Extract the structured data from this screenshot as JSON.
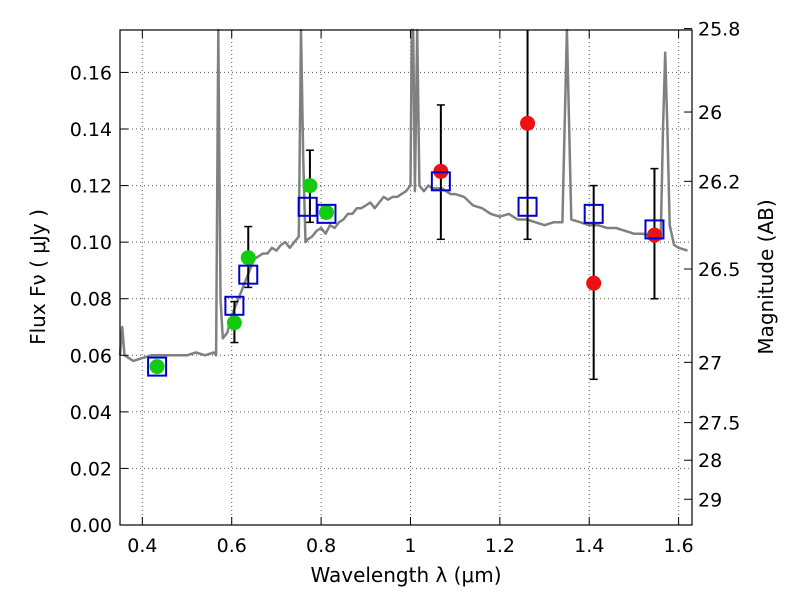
{
  "chart_data": {
    "type": "scatter",
    "xlabel": "Wavelength  λ (μm)",
    "ylabel": "Flux  Fν  ( μJy )",
    "ylabel_right": "Magnitude (AB)",
    "xlim": [
      0.35,
      1.63
    ],
    "ylim": [
      0.0,
      0.175
    ],
    "grid": true,
    "x_ticks": [
      0.4,
      0.6,
      0.8,
      1.0,
      1.2,
      1.4,
      1.6
    ],
    "x_tick_labels": [
      "0.4",
      "0.6",
      "0.8",
      "1",
      "1.2",
      "1.4",
      "1.6"
    ],
    "y_ticks": [
      0.0,
      0.02,
      0.04,
      0.06,
      0.08,
      0.1,
      0.12,
      0.14,
      0.16
    ],
    "y_tick_labels": [
      "0.00",
      "0.02",
      "0.04",
      "0.06",
      "0.08",
      "0.10",
      "0.12",
      "0.14",
      "0.16"
    ],
    "right_ticks": [
      {
        "label": "25.8",
        "flux": 0.1755
      },
      {
        "label": "26",
        "flux": 0.146
      },
      {
        "label": "26.2",
        "flux": 0.1215
      },
      {
        "label": "26.5",
        "flux": 0.0905
      },
      {
        "label": "27",
        "flux": 0.0575
      },
      {
        "label": "27.5",
        "flux": 0.0362
      },
      {
        "label": "28",
        "flux": 0.0229
      },
      {
        "label": "29",
        "flux": 0.0091
      }
    ],
    "colors": {
      "spectrum": "#808080",
      "model_box": "#0000cc",
      "green_points": "#11cc11",
      "red_points": "#ee1111",
      "errorbar": "#000000",
      "grid": "#555555"
    },
    "series": [
      {
        "marker": "line",
        "x": [
          0.35,
          0.355,
          0.36,
          0.37,
          0.38,
          0.4,
          0.42,
          0.44,
          0.46,
          0.48,
          0.5,
          0.52,
          0.54,
          0.56,
          0.565,
          0.57,
          0.575,
          0.58,
          0.59,
          0.6,
          0.61,
          0.62,
          0.63,
          0.64,
          0.65,
          0.66,
          0.67,
          0.68,
          0.69,
          0.7,
          0.71,
          0.72,
          0.73,
          0.74,
          0.75,
          0.755,
          0.76,
          0.765,
          0.77,
          0.78,
          0.79,
          0.8,
          0.81,
          0.82,
          0.83,
          0.84,
          0.85,
          0.86,
          0.87,
          0.88,
          0.89,
          0.9,
          0.91,
          0.92,
          0.93,
          0.94,
          0.95,
          0.96,
          0.97,
          0.98,
          0.99,
          1.0,
          1.003,
          1.006,
          1.01,
          1.015,
          1.02,
          1.03,
          1.04,
          1.05,
          1.06,
          1.07,
          1.08,
          1.09,
          1.1,
          1.12,
          1.14,
          1.16,
          1.18,
          1.2,
          1.22,
          1.24,
          1.26,
          1.28,
          1.3,
          1.32,
          1.34,
          1.35,
          1.36,
          1.38,
          1.4,
          1.42,
          1.44,
          1.46,
          1.48,
          1.5,
          1.52,
          1.54,
          1.55,
          1.56,
          1.565,
          1.57,
          1.575,
          1.58,
          1.59,
          1.6,
          1.62
        ],
        "y": [
          0.06,
          0.07,
          0.06,
          0.059,
          0.058,
          0.059,
          0.06,
          0.06,
          0.06,
          0.06,
          0.06,
          0.061,
          0.06,
          0.061,
          0.06,
          0.175,
          0.08,
          0.066,
          0.068,
          0.074,
          0.078,
          0.082,
          0.086,
          0.09,
          0.094,
          0.095,
          0.096,
          0.096,
          0.098,
          0.097,
          0.099,
          0.1,
          0.098,
          0.1,
          0.102,
          0.175,
          0.13,
          0.1,
          0.101,
          0.102,
          0.104,
          0.105,
          0.103,
          0.106,
          0.105,
          0.107,
          0.108,
          0.11,
          0.11,
          0.112,
          0.112,
          0.113,
          0.114,
          0.112,
          0.114,
          0.116,
          0.115,
          0.116,
          0.116,
          0.117,
          0.118,
          0.12,
          0.175,
          0.175,
          0.118,
          0.175,
          0.12,
          0.118,
          0.12,
          0.119,
          0.119,
          0.119,
          0.118,
          0.117,
          0.117,
          0.116,
          0.113,
          0.112,
          0.11,
          0.109,
          0.11,
          0.108,
          0.108,
          0.107,
          0.106,
          0.107,
          0.107,
          0.175,
          0.108,
          0.107,
          0.106,
          0.106,
          0.105,
          0.105,
          0.104,
          0.103,
          0.103,
          0.102,
          0.101,
          0.101,
          0.14,
          0.167,
          0.14,
          0.106,
          0.099,
          0.098,
          0.097
        ]
      },
      {
        "marker": "open-square",
        "x": [
          0.433,
          0.606,
          0.637,
          0.77,
          0.812,
          1.068,
          1.262,
          1.41,
          1.546
        ],
        "y": [
          0.056,
          0.0775,
          0.0885,
          0.1125,
          0.11,
          0.1215,
          0.1125,
          0.11,
          0.1045
        ]
      },
      {
        "marker": "filled-circle-green",
        "x": [
          0.433,
          0.606,
          0.637,
          0.775,
          0.812
        ],
        "y": [
          0.056,
          0.0715,
          0.0945,
          0.12,
          0.1105
        ]
      },
      {
        "marker": "filled-circle-red",
        "x": [
          1.068,
          1.262,
          1.41,
          1.546
        ],
        "y": [
          0.125,
          0.142,
          0.0855,
          0.1025
        ]
      },
      {
        "marker": "errorbar",
        "x": [
          0.606,
          0.637,
          0.775,
          1.068,
          1.262,
          1.41,
          1.546
        ],
        "ylow": [
          0.0645,
          0.084,
          0.107,
          0.101,
          0.101,
          0.0515,
          0.08
        ],
        "yhigh": [
          0.079,
          0.1055,
          0.1325,
          0.1485,
          0.175,
          0.12,
          0.126
        ]
      }
    ]
  }
}
